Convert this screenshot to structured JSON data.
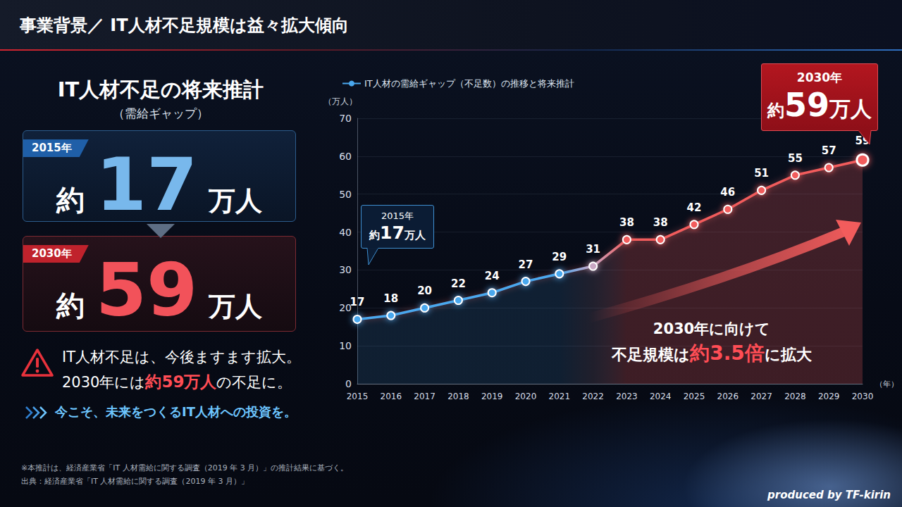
{
  "header": {
    "title": "事業背景／ IT人材不足規模は益々拡大傾向"
  },
  "summary": {
    "title": "IT人材不足の将来推計",
    "subtitle": "（需給ギャップ）",
    "cards": [
      {
        "year": "2015年",
        "prefix": "約",
        "value": 17,
        "unit": "万人"
      },
      {
        "year": "2030年",
        "prefix": "約",
        "value": 59,
        "unit": "万人"
      }
    ],
    "message": {
      "line1": "IT人材不足は、今後ますます拡大。",
      "line2": [
        "2030年には",
        "約59万人",
        "の不足に。"
      ]
    },
    "call_to_action": "今こそ、未来をつくるIT人材への投資を。"
  },
  "chart_data": {
    "type": "line",
    "categories": [
      "2015",
      "2016",
      "2017",
      "2018",
      "2019",
      "2020",
      "2021",
      "2022",
      "2023",
      "2024",
      "2025",
      "2026",
      "2027",
      "2028",
      "2029",
      "2030"
    ],
    "series": [
      {
        "name": "IT人材の需給ギャップ（不足数）の推移と将来推計",
        "values": [
          17,
          18,
          20,
          22,
          24,
          27,
          29,
          31,
          38,
          38,
          42,
          46,
          51,
          55,
          57,
          59
        ],
        "colors": [
          "#4aa8ee",
          "#4aa8ee",
          "#4aa8ee",
          "#4aa8ee",
          "#4aa8ee",
          "#4aa8ee",
          "#4aa8ee",
          "#c9a7c4",
          "#f25c5c",
          "#f25c5c",
          "#f25c5c",
          "#f25c5c",
          "#f25c5c",
          "#f25c5c",
          "#f25c5c",
          "#f25c5c"
        ],
        "marker": "circle",
        "line_style": "solid"
      }
    ],
    "x_label": "（年）",
    "y_label": "（万人）",
    "ylim": [
      0,
      70
    ],
    "yticks": [
      0,
      10,
      20,
      30,
      40,
      50,
      60,
      70
    ],
    "grid": true,
    "legend": "top-left",
    "data_labels": true,
    "annotations": {
      "callouts": [
        {
          "category": "2015",
          "year": "2015年",
          "prefix": "約",
          "value": 17,
          "unit": "万人"
        },
        {
          "category": "2030",
          "year": "2030年",
          "prefix": "約",
          "value": 59,
          "unit": "万人"
        }
      ],
      "trend": {
        "line1": "2030年に向けて",
        "line2": [
          "不足規模は",
          "約3.5倍",
          "に拡大"
        ]
      }
    }
  },
  "footnotes": [
    "※本推計は、経済産業省「IT 人材需給に関する調査（2019 年 3 月）」の推計結果に基づく。",
    "出典：経済産業省「IT 人材需給に関する調査（2019 年 3 月）」"
  ],
  "credit": "produced by TF-kirin"
}
